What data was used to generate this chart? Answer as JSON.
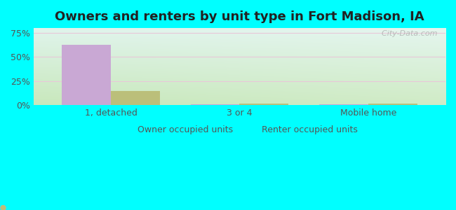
{
  "title": "Owners and renters by unit type in Fort Madison, IA",
  "categories": [
    "1, detached",
    "3 or 4",
    "Mobile home"
  ],
  "owner_values": [
    63.0,
    0.8,
    0.8
  ],
  "renter_values": [
    14.5,
    1.5,
    1.5
  ],
  "owner_color": "#c9a8d4",
  "renter_color": "#bbbf7a",
  "yticks": [
    0,
    25,
    50,
    75
  ],
  "ytick_labels": [
    "0%",
    "25%",
    "50%",
    "75%"
  ],
  "ylim": [
    0,
    80
  ],
  "bar_width": 0.38,
  "outer_bg": "#00ffff",
  "watermark": "  City-Data.com",
  "legend_owner": "Owner occupied units",
  "legend_renter": "Renter occupied units",
  "title_fontsize": 13,
  "axis_fontsize": 9,
  "legend_fontsize": 9,
  "gridline_color": "#e8c8d8",
  "bg_left": "#c8e8c0",
  "bg_right": "#e8f8f0"
}
